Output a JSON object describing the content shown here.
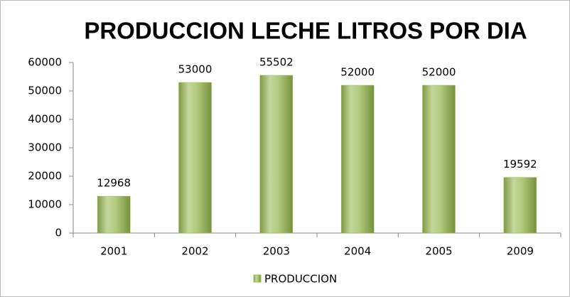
{
  "chart_data": {
    "type": "bar",
    "title": "PRODUCCION LECHE LITROS POR DIA",
    "categories": [
      "2001",
      "2002",
      "2003",
      "2004",
      "2005",
      "2009"
    ],
    "series": [
      {
        "name": "PRODUCCION",
        "color": "#9bbb59",
        "values": [
          12968,
          53000,
          55502,
          52000,
          52000,
          19592
        ]
      }
    ],
    "ylim": [
      0,
      60000
    ],
    "yticks": [
      0,
      10000,
      20000,
      30000,
      40000,
      50000,
      60000
    ],
    "grid": false,
    "legend": "bottom"
  }
}
